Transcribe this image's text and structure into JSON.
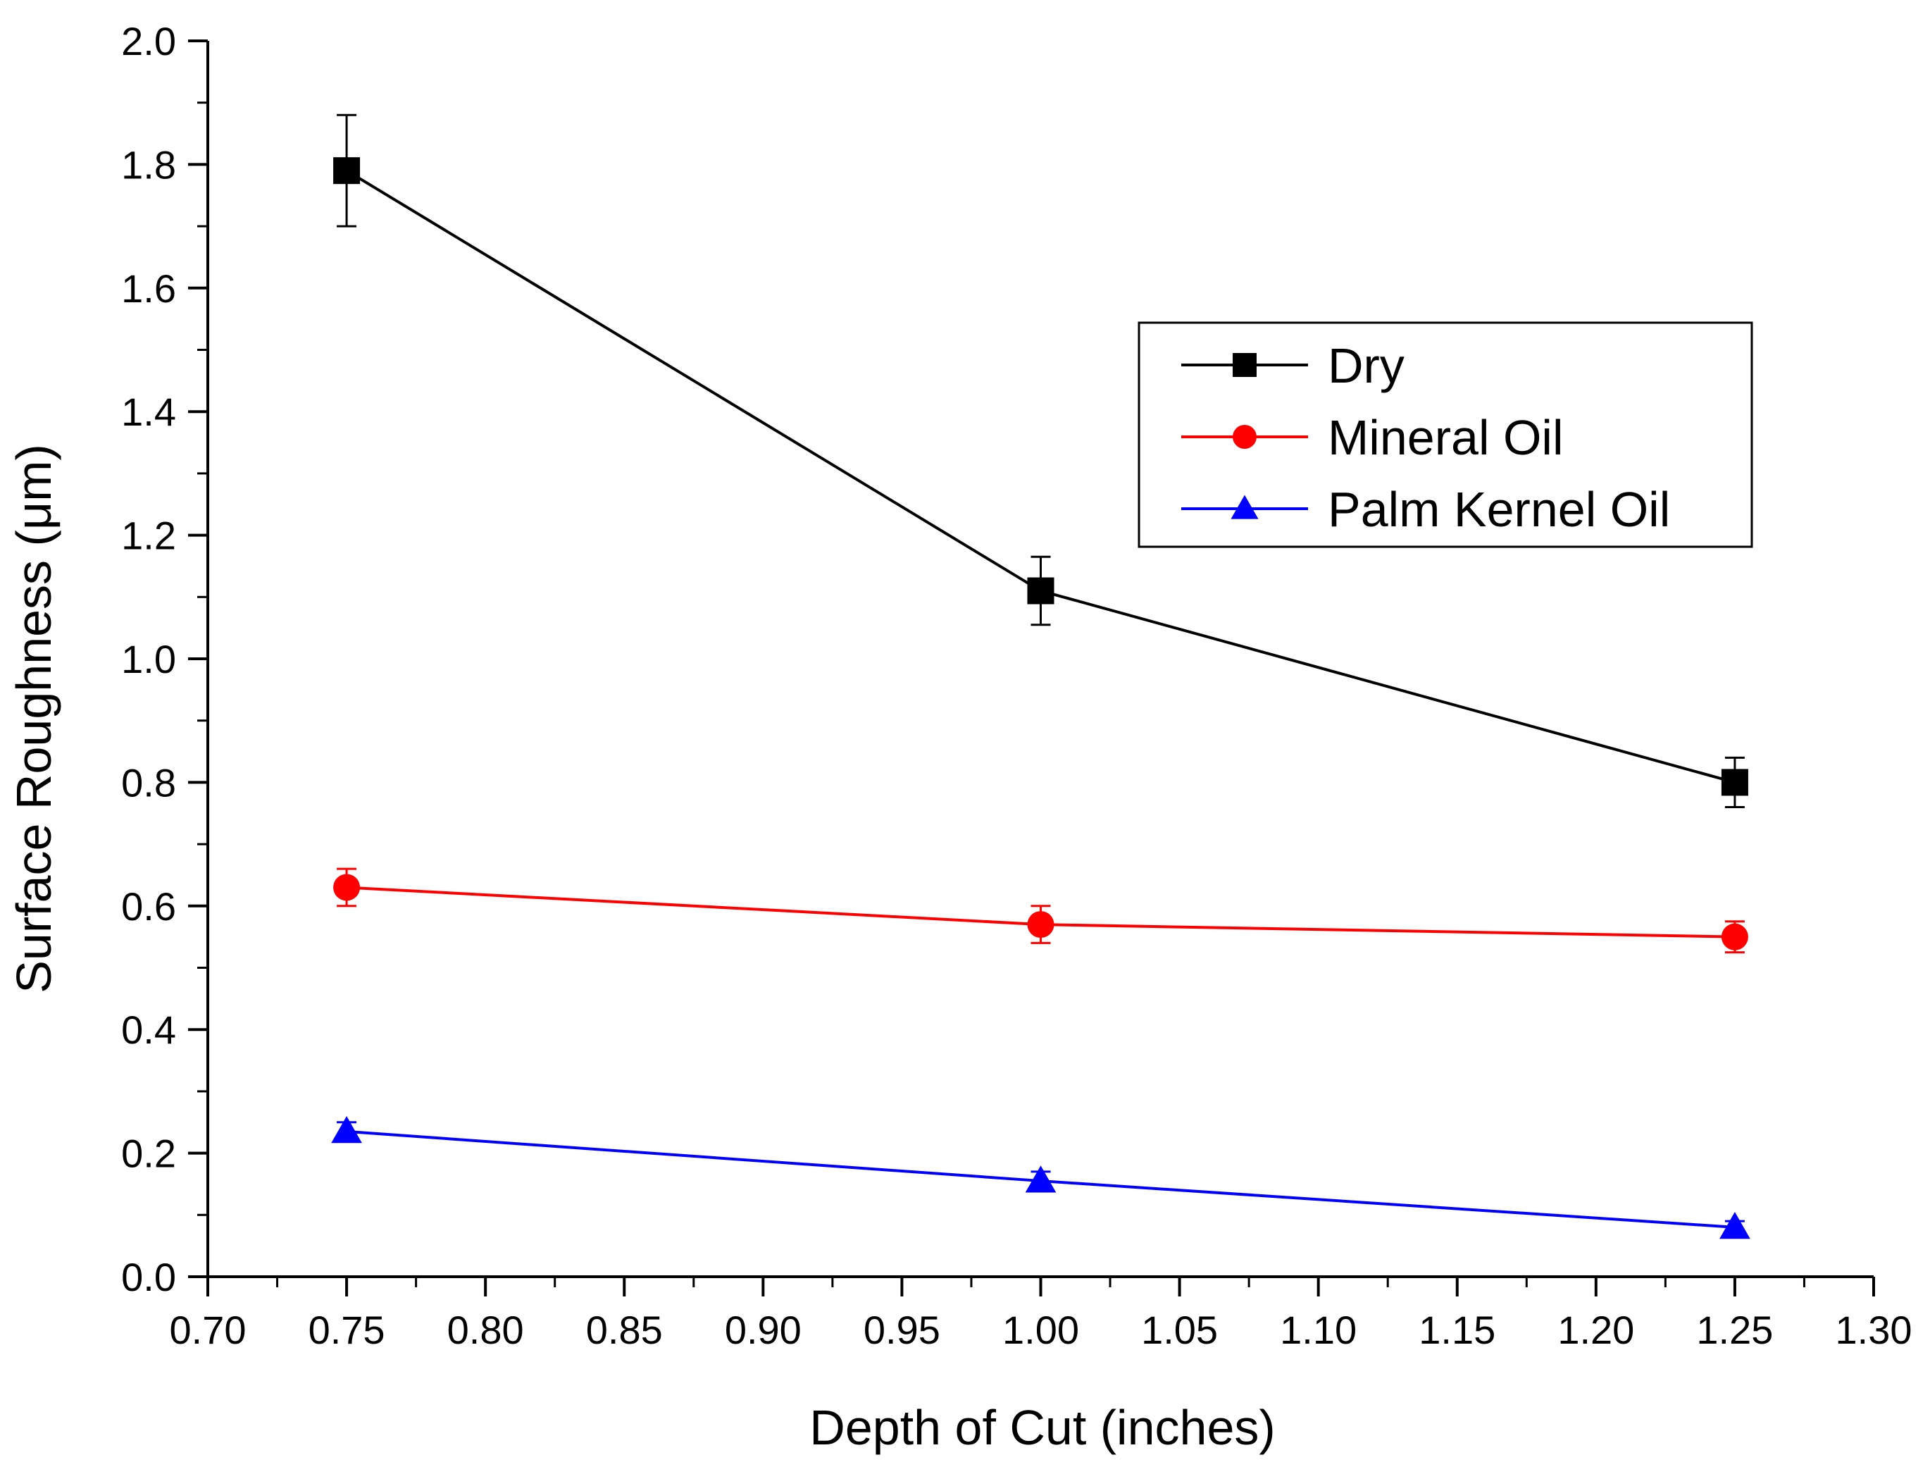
{
  "chart_data": {
    "type": "line",
    "title": "",
    "xlabel": "Depth of Cut (inches)",
    "ylabel": "Surface Roughness (μm)",
    "xlim": [
      0.7,
      1.3
    ],
    "ylim": [
      0.0,
      2.0
    ],
    "x_ticks": [
      "0.70",
      "0.75",
      "0.80",
      "0.85",
      "0.90",
      "0.95",
      "1.00",
      "1.05",
      "1.10",
      "1.15",
      "1.20",
      "1.25",
      "1.30"
    ],
    "y_ticks": [
      "0.0",
      "0.2",
      "0.4",
      "0.6",
      "0.8",
      "1.0",
      "1.2",
      "1.4",
      "1.6",
      "1.8",
      "2.0"
    ],
    "grid": false,
    "legend_position": "top-right",
    "series": [
      {
        "name": "Dry",
        "color": "#000000",
        "marker": "square",
        "x": [
          0.75,
          1.0,
          1.25
        ],
        "y": [
          1.79,
          1.11,
          0.8
        ],
        "error": [
          0.09,
          0.055,
          0.04
        ]
      },
      {
        "name": "Mineral Oil",
        "color": "#ff0000",
        "marker": "circle",
        "x": [
          0.75,
          1.0,
          1.25
        ],
        "y": [
          0.63,
          0.57,
          0.55
        ],
        "error": [
          0.03,
          0.03,
          0.025
        ]
      },
      {
        "name": "Palm Kernel Oil",
        "color": "#0000ff",
        "marker": "triangle",
        "x": [
          0.75,
          1.0,
          1.25
        ],
        "y": [
          0.235,
          0.155,
          0.08
        ],
        "error": [
          0.015,
          0.015,
          0.01
        ]
      }
    ]
  }
}
